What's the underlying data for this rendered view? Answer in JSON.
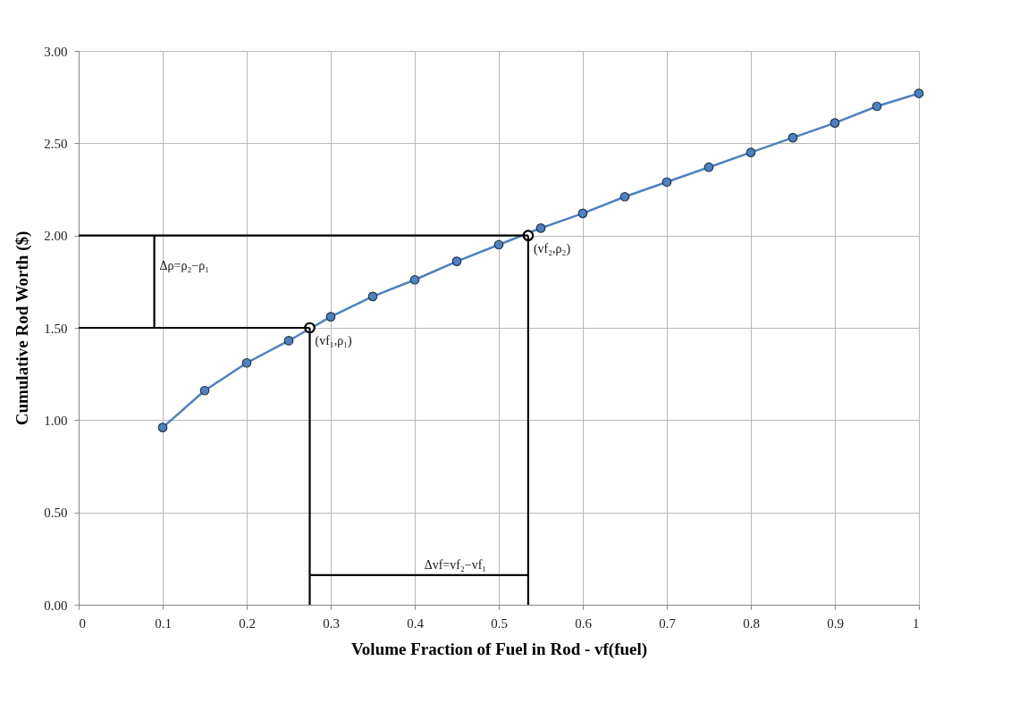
{
  "chart_data": {
    "type": "line",
    "xlabel": "Volume Fraction of Fuel in Rod - vf(fuel)",
    "ylabel": "Cumulative Rod Worth ($)",
    "xlim": [
      0,
      1
    ],
    "ylim": [
      0,
      3
    ],
    "xticks": [
      0,
      0.1,
      0.2,
      0.3,
      0.4,
      0.5,
      0.6,
      0.7,
      0.8,
      0.9,
      1
    ],
    "yticks": [
      {
        "value": 0,
        "label": "0.00"
      },
      {
        "value": 0.5,
        "label": "0.50"
      },
      {
        "value": 1,
        "label": "1.00"
      },
      {
        "value": 1.5,
        "label": "1.50"
      },
      {
        "value": 2,
        "label": "2.00"
      },
      {
        "value": 2.5,
        "label": "2.50"
      },
      {
        "value": 3,
        "label": "3.00"
      }
    ],
    "grid": true,
    "marker": "circle",
    "line_style": "solid",
    "series": [
      {
        "color": "#4f81bd",
        "x": [
          0.1,
          0.15,
          0.2,
          0.25,
          0.3,
          0.35,
          0.4,
          0.45,
          0.5,
          0.55,
          0.6,
          0.65,
          0.7,
          0.75,
          0.8,
          0.85,
          0.9,
          0.95,
          1
        ],
        "values": [
          0.96,
          1.16,
          1.31,
          1.43,
          1.56,
          1.67,
          1.76,
          1.86,
          1.95,
          2.04,
          2.12,
          2.21,
          2.29,
          2.37,
          2.45,
          2.53,
          2.61,
          2.7,
          2.77
        ]
      },
      {
        "type": "scatter",
        "color": "#000000",
        "x": [
          0.275,
          0.535
        ],
        "values": [
          1.5,
          2.0
        ]
      },
      {
        "type": "line",
        "color": "#000000",
        "marker": "none",
        "x": [
          0.275,
          0
        ],
        "values": [
          1.5,
          1.5
        ]
      },
      {
        "type": "line",
        "color": "#000000",
        "marker": "none",
        "x": [
          0.535,
          0
        ],
        "values": [
          2.0,
          2.0
        ]
      },
      {
        "type": "line",
        "color": "#000000",
        "marker": "none",
        "x": [
          0.275,
          0.275
        ],
        "values": [
          1.5,
          0
        ]
      },
      {
        "type": "line",
        "color": "#000000",
        "marker": "none",
        "x": [
          0.535,
          0.535
        ],
        "values": [
          2.0,
          0
        ]
      },
      {
        "type": "line",
        "color": "#000000",
        "marker": "none",
        "x": [
          0.09,
          0.09
        ],
        "values": [
          1.5,
          2.0
        ]
      },
      {
        "type": "line",
        "color": "#000000",
        "marker": "none",
        "x": [
          0.275,
          0.535
        ],
        "values": [
          0.16,
          0.16
        ]
      }
    ],
    "annotations": [
      {
        "text": "(vf₁,ρ₁)",
        "x": 0.275,
        "y": 1.5
      },
      {
        "text": "(vf₂,ρ₂)",
        "x": 0.535,
        "y": 2.0
      },
      {
        "text": "Δρ=ρ₂−ρ₁",
        "x": 0.09,
        "y": 1.78
      },
      {
        "text": "Δvf=vf₂−vf₁",
        "x": 0.405,
        "y": 0.16
      }
    ]
  }
}
